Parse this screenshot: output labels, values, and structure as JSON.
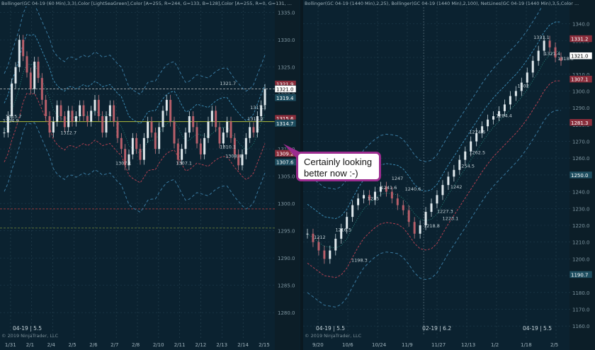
{
  "chart_data": [
    {
      "type": "line",
      "title": "",
      "header": "Bollinger(GC 04-19 (60 Min),3,3),Color [LightSeaGreen],Color [A=255, R=244, G=133, B=128],Color [A=255, R=0, G=131, ...",
      "instrument_label": "04-19 | 5.5",
      "copyright": "© 2019 NinjaTrader, LLC",
      "ylim": [
        1276,
        1336
      ],
      "y_ticks": [
        1280.0,
        1285.0,
        1290.0,
        1295.0,
        1300.0,
        1305.0,
        1310.0,
        1315.0,
        1320.0,
        1325.0,
        1330.0,
        1335.0
      ],
      "x_tick_labels": [
        "1/31",
        "2/1",
        "2/4",
        "2/5",
        "2/6",
        "2/7",
        "2/8",
        "2/10",
        "2/11",
        "2/12",
        "2/13",
        "2/14",
        "2/15"
      ],
      "horizontal_levels": [
        {
          "value": 1315.0,
          "color": "#c8d23c"
        },
        {
          "value": 1299.0,
          "color": "#c04040"
        },
        {
          "value": 1295.5,
          "color": "#7a8a3a"
        },
        {
          "value": 1321.0,
          "color": "#c8c8c8"
        }
      ],
      "price_markers": [
        {
          "value": 1321.9,
          "label": "1321.9",
          "bg": "#8a2d3b"
        },
        {
          "value": 1321.0,
          "label": "1321.0",
          "bg": "#ffffff"
        },
        {
          "value": 1319.4,
          "label": "1319.4",
          "bg": "#1d4d5f"
        },
        {
          "value": 1315.6,
          "label": "1315.6",
          "bg": "#8a2d3b"
        },
        {
          "value": 1314.7,
          "label": "1314.7",
          "bg": "#1d4d5f"
        },
        {
          "value": 1309.2,
          "label": "1309.2",
          "bg": "#8a2d3b"
        },
        {
          "value": 1307.6,
          "label": "1307.6",
          "bg": "#1d4d5f"
        }
      ],
      "annotations": [
        {
          "x": 0.02,
          "y": 1315.7,
          "text": "1315.7"
        },
        {
          "x": 0.01,
          "y": 1314.9,
          "text": "1314.9"
        },
        {
          "x": 0.22,
          "y": 1312.7,
          "text": "1312.7"
        },
        {
          "x": 0.8,
          "y": 1321.7,
          "text": "1321.7"
        },
        {
          "x": 0.91,
          "y": 1317.3,
          "text": "1317.3"
        },
        {
          "x": 0.9,
          "y": 1315.2,
          "text": "1315.2"
        },
        {
          "x": 0.8,
          "y": 1310.1,
          "text": "1310.1"
        },
        {
          "x": 0.82,
          "y": 1308.4,
          "text": "1308.4"
        },
        {
          "x": 0.42,
          "y": 1307.1,
          "text": "1307.1"
        },
        {
          "x": 0.64,
          "y": 1307.1,
          "text": "1307.1"
        }
      ],
      "price_series": [
        1313,
        1316,
        1322,
        1325,
        1330,
        1327,
        1324,
        1321,
        1326,
        1323,
        1319,
        1316,
        1313,
        1315,
        1318,
        1316,
        1314,
        1317,
        1315,
        1316,
        1318,
        1316,
        1315,
        1317,
        1319,
        1316,
        1313,
        1316,
        1318,
        1315,
        1312,
        1310,
        1307,
        1309,
        1312,
        1310,
        1308,
        1312,
        1315,
        1313,
        1310,
        1314,
        1317,
        1319,
        1315,
        1311,
        1308,
        1310,
        1313,
        1316,
        1314,
        1311,
        1309,
        1312,
        1315,
        1317,
        1314,
        1311,
        1313,
        1315,
        1312,
        1309,
        1307,
        1309,
        1312,
        1314,
        1313,
        1316,
        1318,
        1321
      ],
      "bands": {
        "upper_color": "#3a88b0",
        "lower_color": "#b04050",
        "mid_color": "#2a9a8a"
      }
    },
    {
      "type": "line",
      "title": "",
      "header": "Bollinger(GC 04-19 (1440 Min),2,25), Bollinger(GC 04-19 (1440 Min),2,100), NetLines(GC 04-19 (1440 Min),3,5,Color ...",
      "instrument_label": "04-19 | 5.5",
      "date_label": "02-19 | 6.2",
      "copyright": "© 2019 NinjaTrader, LLC",
      "ylim": [
        1155,
        1350
      ],
      "y_ticks": [
        1160.0,
        1170.0,
        1180.0,
        1190.0,
        1200.0,
        1210.0,
        1220.0,
        1230.0,
        1240.0,
        1250.0,
        1260.0,
        1270.0,
        1280.0,
        1290.0,
        1300.0,
        1310.0,
        1320.0,
        1330.0,
        1340.0
      ],
      "x_tick_labels": [
        "9/20",
        "10/6",
        "10/24",
        "11/9",
        "11/27",
        "12/13",
        "1/2",
        "1/18",
        "2/5"
      ],
      "price_markers": [
        {
          "value": 1331.2,
          "label": "1331.2",
          "bg": "#8a2d3b"
        },
        {
          "value": 1321.0,
          "label": "1321.0",
          "bg": "#ffffff"
        },
        {
          "value": 1307.1,
          "label": "1307.1",
          "bg": "#8a2d3b"
        },
        {
          "value": 1281.3,
          "label": "1281.3",
          "bg": "#8a2d3b"
        },
        {
          "value": 1250.0,
          "label": "1250.0",
          "bg": "#1d4d5f"
        },
        {
          "value": 1190.7,
          "label": "1190.7",
          "bg": "#1d4d5f"
        }
      ],
      "annotations": [
        {
          "x": 0.04,
          "y": 1212,
          "text": "1212"
        },
        {
          "x": 0.12,
          "y": 1216.5,
          "text": "1216.5"
        },
        {
          "x": 0.18,
          "y": 1198.3,
          "text": "1198.3"
        },
        {
          "x": 0.24,
          "y": 1235,
          "text": "1235"
        },
        {
          "x": 0.29,
          "y": 1241.6,
          "text": "1241.6"
        },
        {
          "x": 0.33,
          "y": 1247,
          "text": "1247"
        },
        {
          "x": 0.38,
          "y": 1240.6,
          "text": "1240.6"
        },
        {
          "x": 0.45,
          "y": 1218.8,
          "text": "1218.8"
        },
        {
          "x": 0.5,
          "y": 1227.3,
          "text": "1227.3"
        },
        {
          "x": 0.52,
          "y": 1223.1,
          "text": "1223.1"
        },
        {
          "x": 0.55,
          "y": 1242,
          "text": "1242"
        },
        {
          "x": 0.58,
          "y": 1254.5,
          "text": "1254.5"
        },
        {
          "x": 0.62,
          "y": 1262.5,
          "text": "1262.5"
        },
        {
          "x": 0.62,
          "y": 1274.6,
          "text": "1274.6"
        },
        {
          "x": 0.72,
          "y": 1284.4,
          "text": "1284.4"
        },
        {
          "x": 0.8,
          "y": 1302,
          "text": "1302"
        },
        {
          "x": 0.86,
          "y": 1331.1,
          "text": "1331.1"
        },
        {
          "x": 0.9,
          "y": 1321.4,
          "text": "1321.4"
        },
        {
          "x": 0.95,
          "y": 1318.3,
          "text": "1318.3"
        }
      ],
      "price_series": [
        1215,
        1210,
        1205,
        1200,
        1205,
        1212,
        1218,
        1225,
        1232,
        1236,
        1238,
        1235,
        1240,
        1243,
        1240,
        1236,
        1232,
        1229,
        1222,
        1215,
        1220,
        1228,
        1233,
        1238,
        1244,
        1249,
        1253,
        1259,
        1264,
        1270,
        1275,
        1279,
        1283,
        1285,
        1288,
        1292,
        1297,
        1300,
        1305,
        1311,
        1318,
        1324,
        1330,
        1326,
        1320,
        1318
      ],
      "bands": {
        "upper_color": "#3a88b0",
        "lower_color": "#b04050",
        "mid_color": "#2a9a8a"
      }
    }
  ],
  "callout": {
    "text_line1": "Certainly looking",
    "text_line2": "better now :-)"
  }
}
